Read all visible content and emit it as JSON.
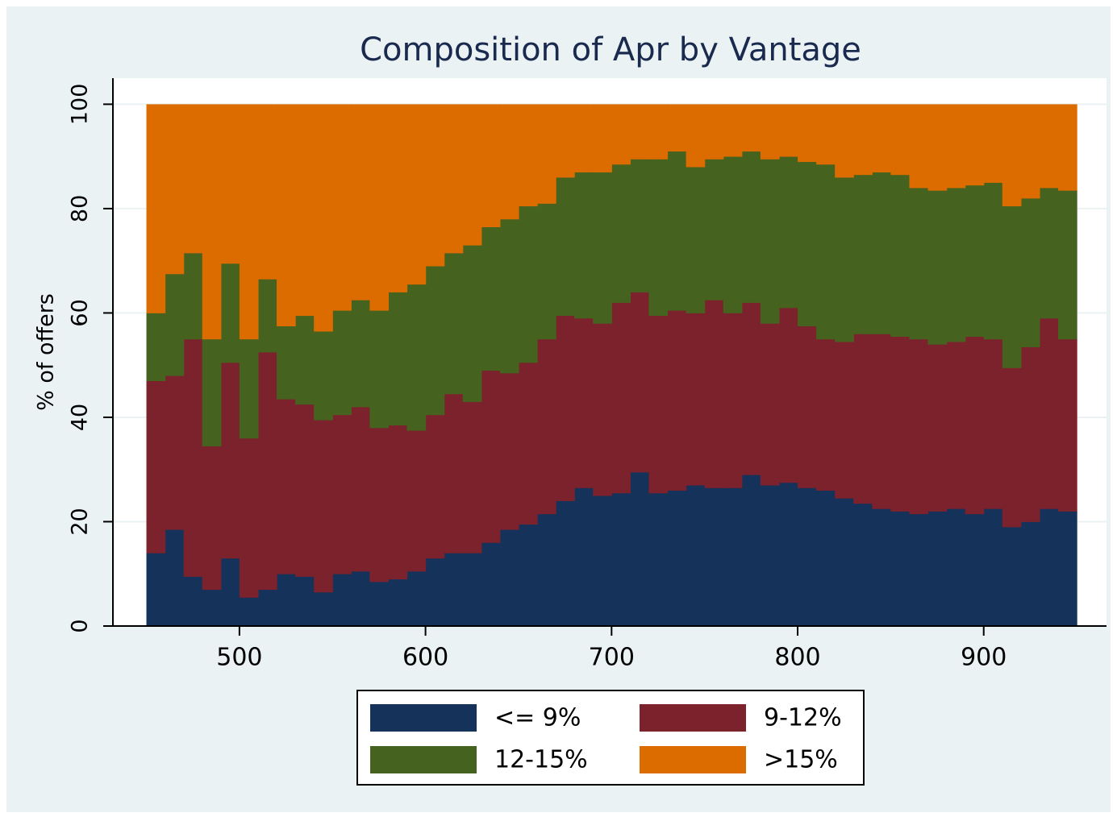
{
  "chart_data": {
    "type": "histogram",
    "stacked": true,
    "title": "Composition of Apr by Vantage",
    "y_label": "% of offers",
    "bins": [
      450,
      460,
      470,
      480,
      490,
      500,
      510,
      520,
      530,
      540,
      550,
      560,
      570,
      580,
      590,
      600,
      610,
      620,
      630,
      640,
      650,
      660,
      670,
      680,
      690,
      700,
      710,
      720,
      730,
      740,
      750,
      760,
      770,
      780,
      790,
      800,
      810,
      820,
      830,
      840,
      850,
      860,
      870,
      880,
      890,
      900,
      910,
      920,
      930,
      940,
      950
    ],
    "series": [
      {
        "name": "<= 9%",
        "color": "#15325b",
        "values": [
          14,
          18.5,
          9.5,
          7,
          13,
          5.5,
          7,
          10,
          9.5,
          6.5,
          10,
          10.5,
          8.5,
          9,
          10.5,
          13,
          14,
          14,
          16,
          18.5,
          19.5,
          21.5,
          24,
          26.5,
          25,
          25.5,
          29.5,
          25.5,
          26,
          27,
          26.5,
          26.5,
          29,
          27,
          27.5,
          26.5,
          26,
          24.5,
          23.5,
          22.5,
          22,
          21.5,
          22,
          22.5,
          21.5,
          22.5,
          19,
          20,
          22.5,
          22
        ]
      },
      {
        "name": "9-12%",
        "color": "#7c222c",
        "values": [
          33,
          29.5,
          45.5,
          27.5,
          37.5,
          30.5,
          45.5,
          33.5,
          33,
          33,
          30.5,
          31.5,
          29.5,
          29.5,
          27,
          27.5,
          30.5,
          29,
          33,
          30,
          31,
          33.5,
          35.5,
          32.5,
          33,
          36.5,
          34.5,
          34,
          34.5,
          33,
          36,
          33.5,
          33,
          31,
          33.5,
          31,
          29,
          30,
          32.5,
          33.5,
          33.5,
          33.5,
          32,
          32,
          34,
          32.5,
          30.5,
          33.5,
          36.5,
          33
        ]
      },
      {
        "name": "12-15%",
        "color": "#45631f",
        "values": [
          13,
          19.5,
          16.5,
          20.5,
          19,
          19,
          14,
          14,
          17,
          17,
          20,
          20.5,
          22.5,
          25.5,
          28,
          28.5,
          27,
          30,
          27.5,
          29.5,
          30,
          26,
          26.5,
          28,
          29,
          26.5,
          25.5,
          30,
          30.5,
          28,
          27,
          30,
          29,
          31.5,
          29,
          31.5,
          33.5,
          31.5,
          30.5,
          31,
          31,
          29,
          29.5,
          29.5,
          29,
          30,
          31,
          28.5,
          25,
          28.5
        ]
      },
      {
        "name": ">15%",
        "color": "#dc6b00",
        "values": [
          40,
          32.5,
          28.5,
          45,
          30.5,
          45,
          33.5,
          42.5,
          40.5,
          43.5,
          39.5,
          37.5,
          39.5,
          36,
          34.5,
          31,
          28.5,
          27,
          23.5,
          22,
          19.5,
          19,
          14,
          13,
          13,
          11.5,
          10.5,
          10.5,
          9,
          12,
          10.5,
          10,
          9,
          10.5,
          10,
          11,
          11.5,
          14,
          13.5,
          13,
          13.5,
          16,
          16.5,
          16,
          15.5,
          15,
          19.5,
          18,
          16,
          16.5
        ]
      }
    ],
    "xlim": [
      432,
      966
    ],
    "ylim": [
      0,
      105
    ],
    "xticks": [
      500,
      600,
      700,
      800,
      900
    ],
    "yticks": [
      0,
      20,
      40,
      60,
      80,
      100
    ],
    "grid": true,
    "legend": "bottom"
  }
}
